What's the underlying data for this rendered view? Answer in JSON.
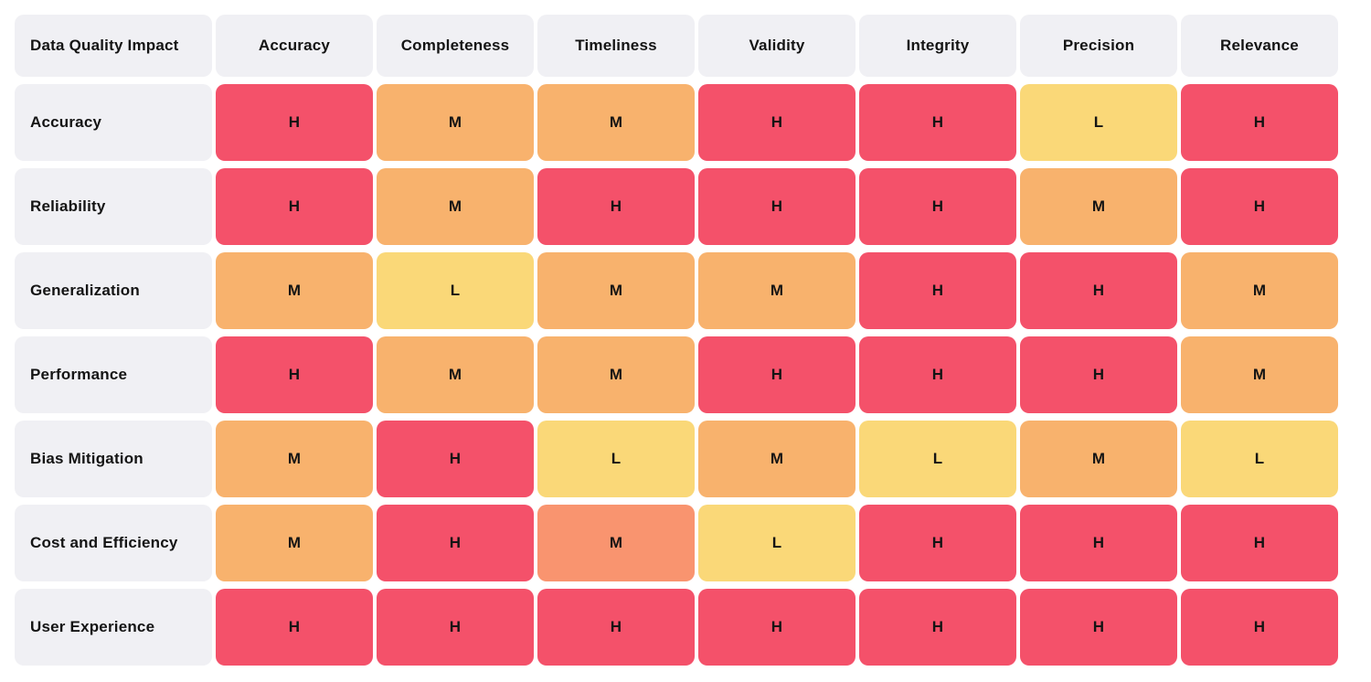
{
  "chart_data": {
    "type": "heatmap",
    "title": "Data Quality Impact",
    "columns": [
      "Accuracy",
      "Completeness",
      "Timeliness",
      "Validity",
      "Integrity",
      "Precision",
      "Relevance"
    ],
    "rows": [
      "Accuracy",
      "Reliability",
      "Generalization",
      "Performance",
      "Bias Mitigation",
      "Cost and Efficiency",
      "User Experience"
    ],
    "values": [
      [
        "H",
        "M",
        "M",
        "H",
        "H",
        "L",
        "H"
      ],
      [
        "H",
        "M",
        "H",
        "H",
        "H",
        "M",
        "H"
      ],
      [
        "M",
        "L",
        "M",
        "M",
        "H",
        "H",
        "M"
      ],
      [
        "H",
        "M",
        "M",
        "H",
        "H",
        "H",
        "M"
      ],
      [
        "M",
        "H",
        "L",
        "M",
        "L",
        "M",
        "L"
      ],
      [
        "M",
        "H",
        "M",
        "L",
        "H",
        "H",
        "H"
      ],
      [
        "H",
        "H",
        "H",
        "H",
        "H",
        "H",
        "H"
      ]
    ],
    "cell_levels": [
      [
        "H",
        "M",
        "M",
        "H",
        "H",
        "L",
        "H"
      ],
      [
        "H",
        "M",
        "H",
        "H",
        "H",
        "M",
        "H"
      ],
      [
        "M",
        "L",
        "M",
        "M",
        "H",
        "H",
        "M"
      ],
      [
        "H",
        "M",
        "M",
        "H",
        "H",
        "H",
        "M"
      ],
      [
        "M",
        "H",
        "L",
        "M",
        "L",
        "M",
        "L"
      ],
      [
        "M",
        "H",
        "M_alt",
        "L",
        "H",
        "H",
        "H"
      ],
      [
        "H",
        "H",
        "H",
        "H",
        "H",
        "H",
        "H"
      ]
    ],
    "palette": {
      "H": "#F4516A",
      "M": "#F8B26D",
      "L": "#FAD878",
      "M_alt": "#F9946F"
    },
    "layout": {
      "header_bg": "#F0F0F4",
      "text_color": "#141414",
      "page_bg": "#FFFFFF",
      "legend_position": "none",
      "grid": "off"
    }
  }
}
